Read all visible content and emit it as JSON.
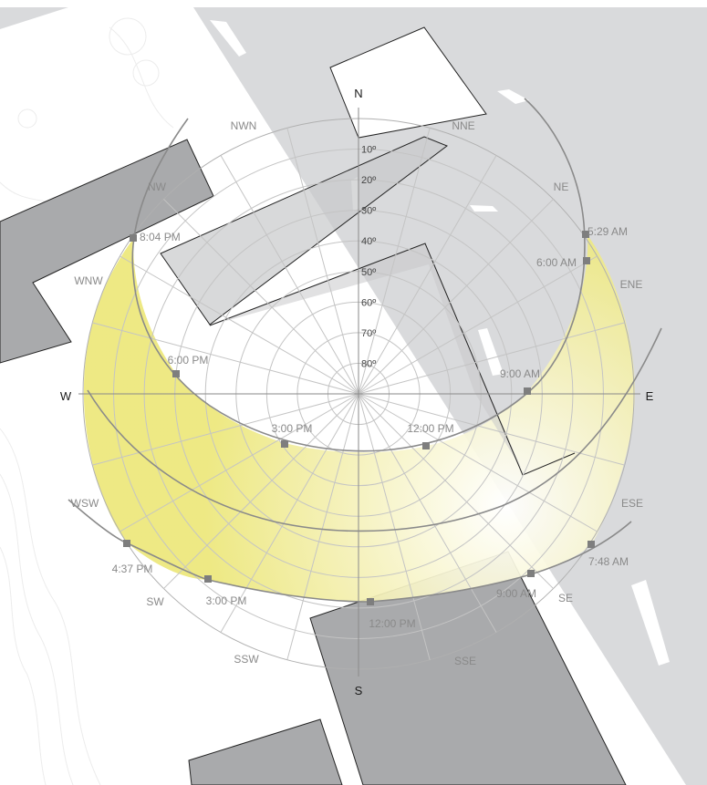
{
  "diagram": {
    "cardinals": {
      "north": "N",
      "south": "S",
      "east": "E",
      "west": "W"
    },
    "directions": [
      {
        "label": "NNE",
        "az": 22.5
      },
      {
        "label": "NE",
        "az": 45
      },
      {
        "label": "ENE",
        "az": 67.5
      },
      {
        "label": "ESE",
        "az": 112.5
      },
      {
        "label": "SE",
        "az": 135
      },
      {
        "label": "SSE",
        "az": 157.5
      },
      {
        "label": "SSW",
        "az": 202.5
      },
      {
        "label": "SW",
        "az": 225
      },
      {
        "label": "WSW",
        "az": 247.5
      },
      {
        "label": "WNW",
        "az": 292.5
      },
      {
        "label": "NW",
        "az": 315
      },
      {
        "label": "NWN",
        "az": 337.5
      }
    ],
    "altitude_labels": [
      "10º",
      "20º",
      "30º",
      "40º",
      "50º",
      "60º",
      "70º",
      "80º"
    ],
    "summer_path_times": [
      {
        "label": "5:29 AM"
      },
      {
        "label": "6:00 AM"
      },
      {
        "label": "9:00 AM"
      },
      {
        "label": "12:00 PM"
      },
      {
        "label": "3:00 PM"
      },
      {
        "label": "6:00 PM"
      },
      {
        "label": "8:04 PM"
      }
    ],
    "winter_path_times": [
      {
        "label": "7:48 AM"
      },
      {
        "label": "9:00 AM"
      },
      {
        "label": "12:00 PM"
      },
      {
        "label": "3:00 PM"
      },
      {
        "label": "4:37 PM"
      }
    ],
    "colors": {
      "water": "#d9dadc",
      "building": "#a9aaac",
      "overlay": "#c8c9cb",
      "sun_band": "#ece77a",
      "grid": "#c4c4c4",
      "path": "#8a8a8a"
    }
  }
}
